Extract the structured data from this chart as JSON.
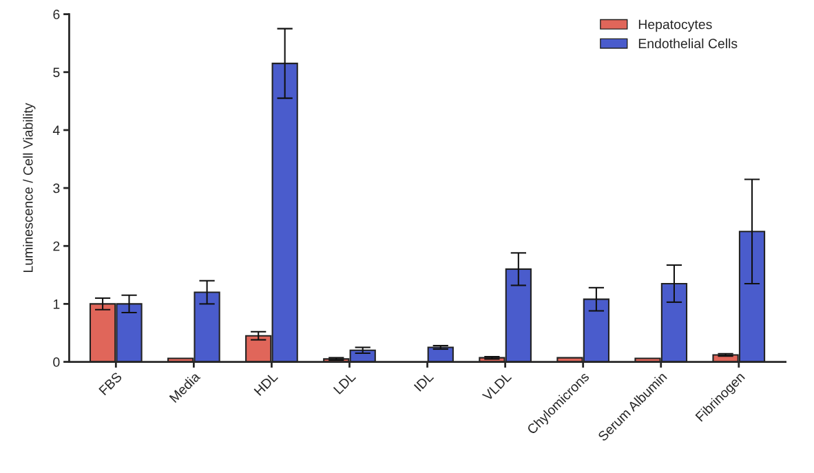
{
  "chart_data": {
    "type": "bar",
    "ylabel": "Luminescence / Cell Viability",
    "categories": [
      "FBS",
      "Media",
      "HDL",
      "LDL",
      "IDL",
      "VLDL",
      "Chylomicrons",
      "Serum Albumin",
      "Fibrinogen"
    ],
    "series": [
      {
        "name": "Hepatocytes",
        "color": "#e0665a",
        "values": [
          1.0,
          0.06,
          0.45,
          0.05,
          null,
          0.07,
          0.07,
          0.06,
          0.12
        ],
        "errors": [
          0.1,
          null,
          0.07,
          0.02,
          null,
          0.02,
          null,
          null,
          0.02
        ]
      },
      {
        "name": "Endothelial Cells",
        "color": "#4a5ccc",
        "values": [
          1.0,
          1.2,
          5.15,
          0.2,
          0.25,
          1.6,
          1.08,
          1.35,
          2.25
        ],
        "errors": [
          0.15,
          0.2,
          0.6,
          0.05,
          0.03,
          0.28,
          0.2,
          0.32,
          0.9
        ]
      }
    ],
    "ylim": [
      0,
      6
    ],
    "yticks": [
      0,
      1,
      2,
      3,
      4,
      5,
      6
    ],
    "grid": false,
    "legend": "top right"
  }
}
